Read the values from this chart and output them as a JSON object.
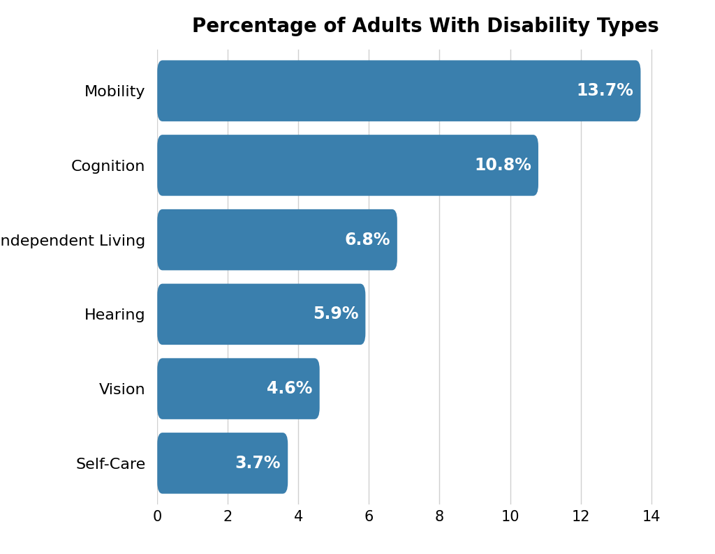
{
  "title": "Percentage of Adults With Disability Types",
  "categories": [
    "Self-Care",
    "Vision",
    "Hearing",
    "Independent Living",
    "Cognition",
    "Mobility"
  ],
  "values": [
    3.7,
    4.6,
    5.9,
    6.8,
    10.8,
    13.7
  ],
  "labels": [
    "3.7%",
    "4.6%",
    "5.9%",
    "6.8%",
    "10.8%",
    "13.7%"
  ],
  "bar_color": "#3a7fad",
  "label_color": "#ffffff",
  "title_fontsize": 20,
  "label_fontsize": 17,
  "tick_fontsize": 15,
  "ytick_fontsize": 16,
  "xlim": [
    0,
    15.2
  ],
  "xticks": [
    0,
    2,
    4,
    6,
    8,
    10,
    12,
    14
  ],
  "background_color": "#ffffff",
  "grid_color": "#d0d0d0",
  "bar_height": 0.82
}
